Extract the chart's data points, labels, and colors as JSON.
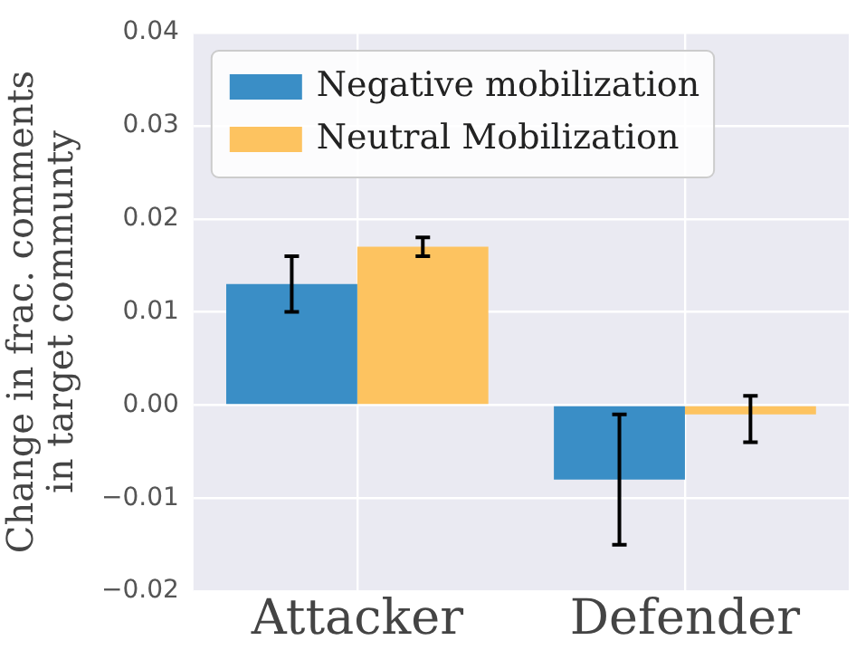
{
  "chart_data": {
    "type": "bar",
    "ylabel": "Change in frac. comments\nin target communty",
    "categories": [
      "Attacker",
      "Defender"
    ],
    "series": [
      {
        "name": "Negative mobilization",
        "color": "#3a8ec6",
        "values": [
          0.013,
          -0.008
        ],
        "errors": [
          [
            0.01,
            0.016
          ],
          [
            -0.015,
            -0.001
          ]
        ]
      },
      {
        "name": "Neutral Mobilization",
        "color": "#fdc360",
        "values": [
          0.017,
          -0.001
        ],
        "errors": [
          [
            0.016,
            0.018
          ],
          [
            -0.004,
            0.001
          ]
        ]
      }
    ],
    "ylim": [
      -0.02,
      0.04
    ],
    "yticks": [
      {
        "value": -0.02,
        "label": "−0.02"
      },
      {
        "value": -0.01,
        "label": "−0.01"
      },
      {
        "value": 0,
        "label": "0.00"
      },
      {
        "value": 0.01,
        "label": "0.01"
      },
      {
        "value": 0.02,
        "label": "0.02"
      },
      {
        "value": 0.03,
        "label": "0.03"
      },
      {
        "value": 0.04,
        "label": "0.04"
      }
    ],
    "grid": true,
    "legend": "top left"
  }
}
